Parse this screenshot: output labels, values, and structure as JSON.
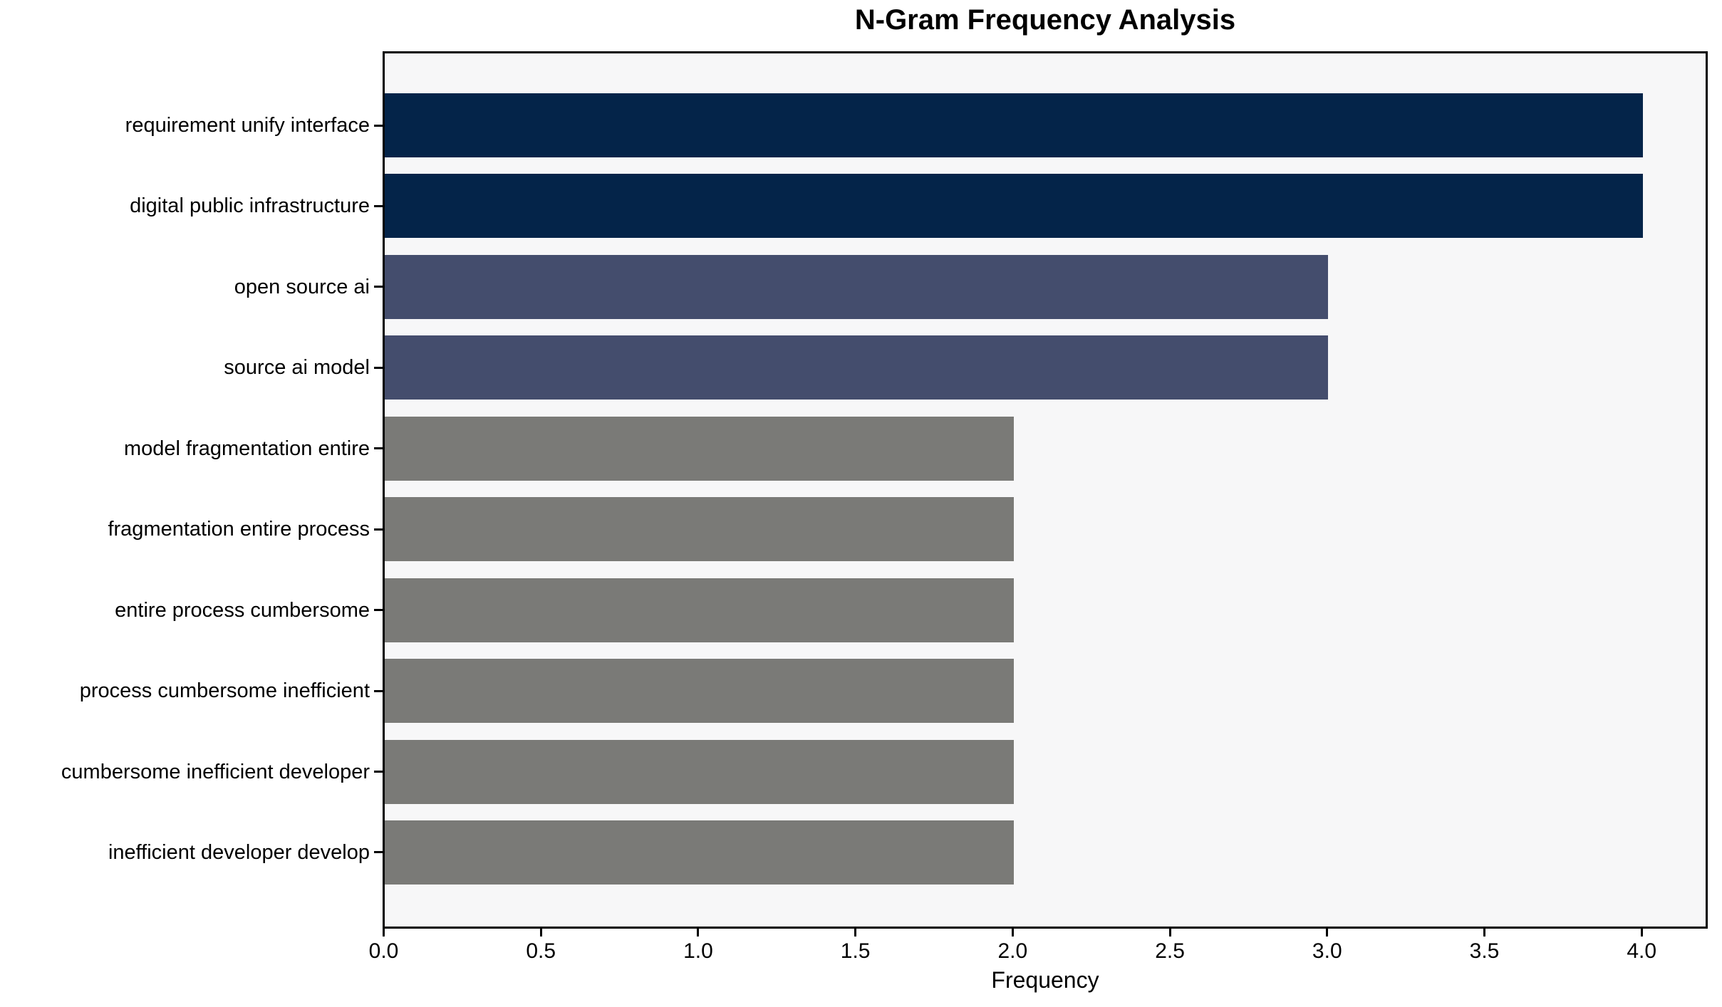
{
  "chart_data": {
    "type": "bar",
    "orientation": "horizontal",
    "title": "N-Gram Frequency Analysis",
    "xlabel": "Frequency",
    "ylabel": "",
    "categories": [
      "requirement unify interface",
      "digital public infrastructure",
      "open source ai",
      "source ai model",
      "model fragmentation entire",
      "fragmentation entire process",
      "entire process cumbersome",
      "process cumbersome inefficient",
      "cumbersome inefficient developer",
      "inefficient developer develop"
    ],
    "values": [
      4,
      4,
      3,
      3,
      2,
      2,
      2,
      2,
      2,
      2
    ],
    "bar_colors": [
      "#042449",
      "#042449",
      "#444d6d",
      "#444d6d",
      "#7a7a77",
      "#7a7a77",
      "#7a7a77",
      "#7a7a77",
      "#7a7a77",
      "#7a7a77"
    ],
    "xlim": [
      0,
      4.2
    ],
    "xtick_values": [
      0,
      0.5,
      1,
      1.5,
      2,
      2.5,
      3,
      3.5,
      4
    ],
    "xtick_labels": [
      "0.0",
      "0.5",
      "1.0",
      "1.5",
      "2.0",
      "2.5",
      "3.0",
      "3.5",
      "4.0"
    ],
    "grid": false,
    "legend_position": "none",
    "plot_background": "#f7f7f8",
    "palette": {
      "frequency_4": "#042449",
      "frequency_3": "#444d6d",
      "frequency_2": "#7a7a77"
    }
  }
}
